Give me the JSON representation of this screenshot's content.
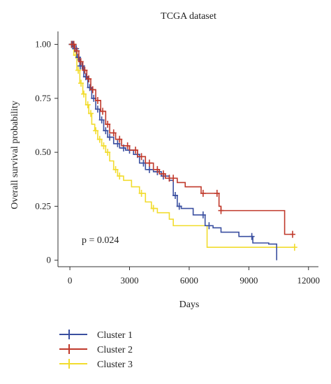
{
  "chart_data": {
    "type": "line",
    "title": "TCGA dataset",
    "xlabel": "Days",
    "ylabel": "Overall survival probability",
    "xlim": [
      -600,
      12500
    ],
    "ylim": [
      -0.03,
      1.06
    ],
    "xticks": [
      0,
      3000,
      6000,
      9000,
      12000
    ],
    "xtick_labels": [
      "0",
      "3000",
      "6000",
      "9000",
      "12000"
    ],
    "yticks": [
      0,
      0.25,
      0.5,
      0.75,
      1.0
    ],
    "ytick_labels": [
      "0",
      "0.25",
      "0.50",
      "0.75",
      "1.00"
    ],
    "grid": false,
    "legend_position": "bottom-left",
    "annotation": "p = 0.024",
    "series": [
      {
        "name": "Cluster 1",
        "color": "#3a4fa0",
        "steps": [
          [
            0,
            1.0
          ],
          [
            200,
            0.98
          ],
          [
            350,
            0.94
          ],
          [
            500,
            0.9
          ],
          [
            700,
            0.85
          ],
          [
            900,
            0.8
          ],
          [
            1100,
            0.75
          ],
          [
            1300,
            0.7
          ],
          [
            1500,
            0.65
          ],
          [
            1700,
            0.6
          ],
          [
            1900,
            0.57
          ],
          [
            2200,
            0.54
          ],
          [
            2500,
            0.52
          ],
          [
            2800,
            0.51
          ],
          [
            3200,
            0.49
          ],
          [
            3500,
            0.45
          ],
          [
            3800,
            0.42
          ],
          [
            4200,
            0.41
          ],
          [
            4600,
            0.39
          ],
          [
            5000,
            0.37
          ],
          [
            5200,
            0.3
          ],
          [
            5400,
            0.25
          ],
          [
            5600,
            0.24
          ],
          [
            6200,
            0.21
          ],
          [
            6800,
            0.16
          ],
          [
            7200,
            0.15
          ],
          [
            7600,
            0.13
          ],
          [
            8500,
            0.11
          ],
          [
            9200,
            0.08
          ],
          [
            10000,
            0.075
          ],
          [
            10400,
            0.0
          ]
        ],
        "end_x": 10400,
        "censor_x": [
          80,
          150,
          250,
          320,
          420,
          520,
          620,
          800,
          1000,
          1200,
          1400,
          1600,
          1800,
          2000,
          2400,
          2700,
          3000,
          3400,
          3700,
          4000,
          4400,
          4700,
          5300,
          5500,
          6700,
          7000,
          9150
        ]
      },
      {
        "name": "Cluster 2",
        "color": "#c0392b",
        "steps": [
          [
            0,
            1.0
          ],
          [
            250,
            0.97
          ],
          [
            450,
            0.92
          ],
          [
            650,
            0.88
          ],
          [
            850,
            0.84
          ],
          [
            1050,
            0.79
          ],
          [
            1300,
            0.74
          ],
          [
            1550,
            0.69
          ],
          [
            1800,
            0.63
          ],
          [
            2000,
            0.59
          ],
          [
            2300,
            0.56
          ],
          [
            2600,
            0.53
          ],
          [
            3000,
            0.51
          ],
          [
            3400,
            0.48
          ],
          [
            3800,
            0.45
          ],
          [
            4200,
            0.42
          ],
          [
            4500,
            0.4
          ],
          [
            4800,
            0.38
          ],
          [
            5400,
            0.36
          ],
          [
            5800,
            0.34
          ],
          [
            6600,
            0.31
          ],
          [
            7500,
            0.25
          ],
          [
            7600,
            0.23
          ],
          [
            10800,
            0.12
          ]
        ],
        "end_x": 11200,
        "censor_x": [
          100,
          200,
          350,
          550,
          750,
          950,
          1150,
          1400,
          1650,
          1900,
          2200,
          2500,
          2900,
          3300,
          3600,
          4000,
          4400,
          4700,
          5000,
          5200,
          6700,
          7400,
          7600,
          11200
        ]
      },
      {
        "name": "Cluster 3",
        "color": "#f2dc2e",
        "steps": [
          [
            0,
            1.0
          ],
          [
            200,
            0.95
          ],
          [
            350,
            0.88
          ],
          [
            500,
            0.82
          ],
          [
            650,
            0.77
          ],
          [
            800,
            0.72
          ],
          [
            950,
            0.68
          ],
          [
            1100,
            0.63
          ],
          [
            1250,
            0.6
          ],
          [
            1400,
            0.56
          ],
          [
            1600,
            0.53
          ],
          [
            1800,
            0.5
          ],
          [
            2000,
            0.46
          ],
          [
            2200,
            0.42
          ],
          [
            2400,
            0.39
          ],
          [
            2700,
            0.37
          ],
          [
            3100,
            0.34
          ],
          [
            3500,
            0.31
          ],
          [
            3800,
            0.27
          ],
          [
            4100,
            0.24
          ],
          [
            4400,
            0.22
          ],
          [
            5000,
            0.19
          ],
          [
            5200,
            0.16
          ],
          [
            6900,
            0.06
          ]
        ],
        "end_x": 11300,
        "censor_x": [
          80,
          180,
          300,
          420,
          560,
          700,
          900,
          1050,
          1300,
          1500,
          1700,
          1900,
          2300,
          2500,
          3600,
          4200,
          11300
        ]
      }
    ]
  }
}
